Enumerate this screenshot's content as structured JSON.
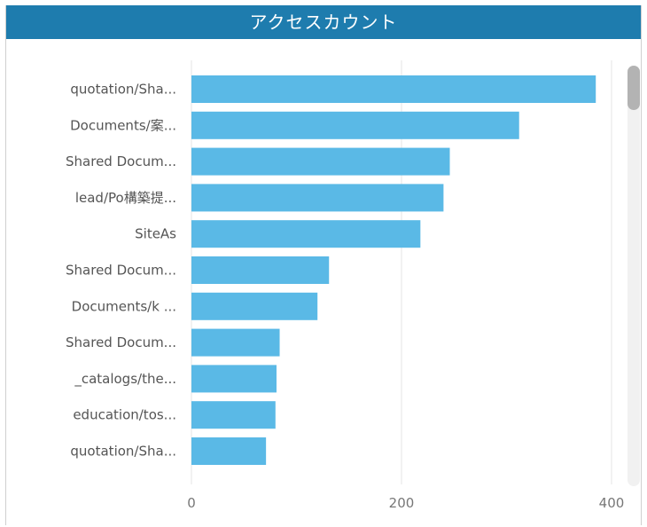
{
  "title": "アクセスカウント",
  "colors": {
    "header": "#1e7cae",
    "bar": "#5ab9e6",
    "grid": "#e6e6e6"
  },
  "chart_data": {
    "type": "bar",
    "orientation": "horizontal",
    "title": "アクセスカウント",
    "categories": [
      "quotation/Sha...",
      "Documents/案...",
      "Shared Docum...",
      "lead/Po構築提...",
      "SiteAs",
      "Shared Docum...",
      "Documents/k ...",
      "Shared Docum...",
      "_catalogs/the...",
      "education/tos...",
      "quotation/Sha..."
    ],
    "values": [
      385,
      312,
      246,
      240,
      218,
      131,
      120,
      84,
      81,
      80,
      71
    ],
    "xlim": [
      0,
      400
    ],
    "xticks": [
      "0",
      "200",
      "400"
    ],
    "grid": true,
    "legend": "none"
  }
}
